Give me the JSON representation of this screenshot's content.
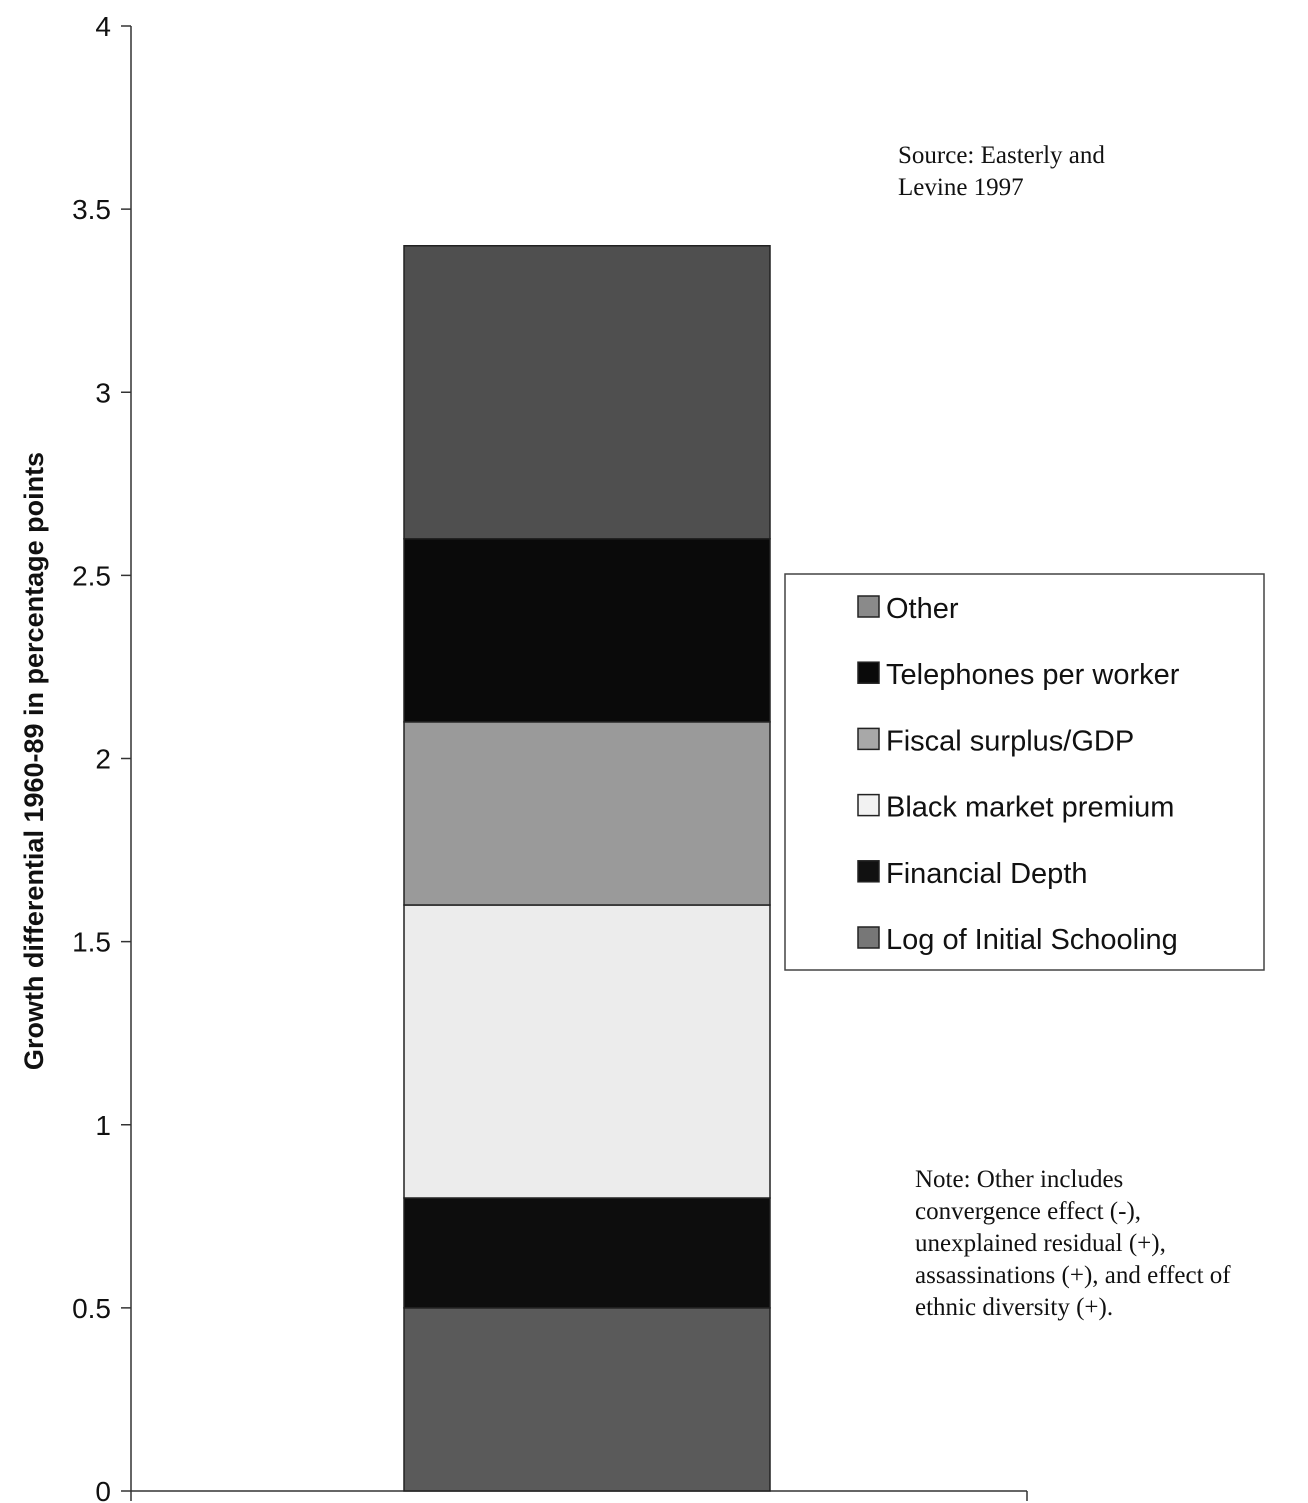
{
  "chart_data": {
    "type": "bar",
    "stacked": true,
    "title": "",
    "xlabel": "",
    "ylabel": "Growth differential 1960-89 in percentage points",
    "ylim": [
      0,
      4
    ],
    "yticks": [
      {
        "value": 0,
        "label": "0"
      },
      {
        "value": 0.5,
        "label": "0.5"
      },
      {
        "value": 1,
        "label": "1"
      },
      {
        "value": 1.5,
        "label": "1.5"
      },
      {
        "value": 2,
        "label": "2"
      },
      {
        "value": 2.5,
        "label": "2.5"
      },
      {
        "value": 3,
        "label": "3"
      },
      {
        "value": 3.5,
        "label": "3.5"
      },
      {
        "value": 4,
        "label": "4"
      }
    ],
    "grid": false,
    "legend_position": "right",
    "series": [
      {
        "name": "Log of Initial Schooling",
        "value": 0.5,
        "color": "#5a5a5a",
        "swatch": "#777777"
      },
      {
        "name": "Financial Depth",
        "value": 0.3,
        "color": "#0d0d0d",
        "swatch": "#111111"
      },
      {
        "name": "Black market premium",
        "value": 0.8,
        "color": "#ececec",
        "swatch": "#f2f2f2"
      },
      {
        "name": "Fiscal surplus/GDP",
        "value": 0.5,
        "color": "#9a9a9a",
        "swatch": "#a8a8a8"
      },
      {
        "name": "Telephones per worker",
        "value": 0.5,
        "color": "#0a0a0a",
        "swatch": "#0a0a0a"
      },
      {
        "name": "Other",
        "value": 0.8,
        "color": "#4f4f4f",
        "swatch": "#8a8a8a"
      }
    ],
    "legend_order": [
      "Other",
      "Telephones per worker",
      "Fiscal surplus/GDP",
      "Black market premium",
      "Financial Depth",
      "Log of Initial Schooling"
    ]
  },
  "notes": {
    "source_line1": "Source: Easterly and",
    "source_line2": "Levine 1997",
    "other_line1": "Note: Other includes",
    "other_line2": "convergence effect (-),",
    "other_line3": "unexplained residual (+),",
    "other_line4": "assassinations (+), and effect of",
    "other_line5": "ethnic diversity  (+)."
  }
}
